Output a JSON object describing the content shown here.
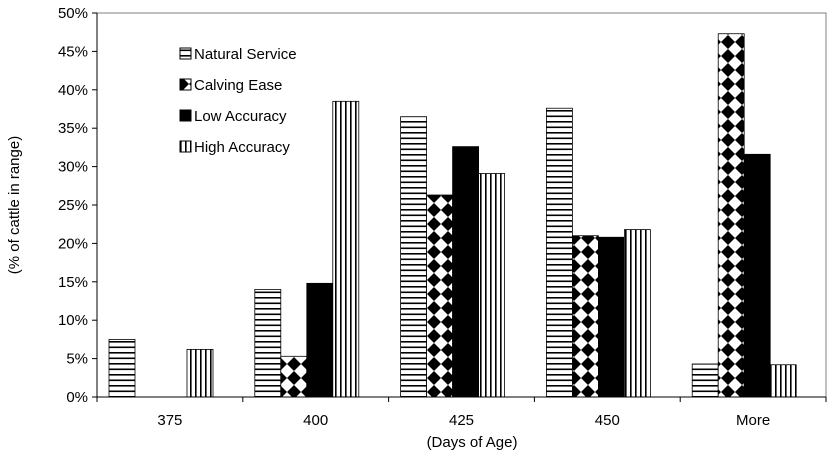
{
  "chart_data": {
    "type": "bar",
    "title": "",
    "xlabel": "(Days of Age)",
    "ylabel": "(% of cattle in range)",
    "categories": [
      "375",
      "400",
      "425",
      "450",
      "More"
    ],
    "ylim": [
      0,
      50
    ],
    "ytick_step": 5,
    "ytick_format": "percent",
    "grid": false,
    "legend_position": "top-left",
    "series": [
      {
        "name": "Natural Service",
        "pattern": "horizontal-lines",
        "values": [
          7.5,
          14.0,
          36.5,
          37.6,
          4.3
        ]
      },
      {
        "name": "Calving Ease",
        "pattern": "diamond-checker",
        "values": [
          0.0,
          5.3,
          26.3,
          21.0,
          47.3
        ]
      },
      {
        "name": "Low Accuracy",
        "pattern": "solid-black",
        "values": [
          0.0,
          14.8,
          32.6,
          20.8,
          31.6
        ]
      },
      {
        "name": "High Accuracy",
        "pattern": "vertical-lines",
        "values": [
          6.2,
          38.5,
          29.1,
          21.8,
          4.2
        ]
      }
    ]
  }
}
